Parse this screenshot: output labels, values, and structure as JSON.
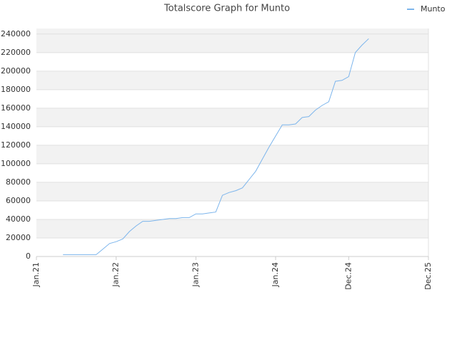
{
  "chart_data": {
    "type": "line",
    "title": "Totalscore Graph for Munto",
    "x": [
      "2021-05",
      "2021-06",
      "2021-07",
      "2021-08",
      "2021-09",
      "2021-10",
      "2021-11",
      "2021-12",
      "2022-01",
      "2022-02",
      "2022-03",
      "2022-04",
      "2022-05",
      "2022-06",
      "2022-07",
      "2022-08",
      "2022-09",
      "2022-10",
      "2022-11",
      "2022-12",
      "2023-01",
      "2023-02",
      "2023-03",
      "2023-04",
      "2023-05",
      "2023-06",
      "2023-07",
      "2023-08",
      "2023-09",
      "2023-10",
      "2023-11",
      "2023-12",
      "2024-01",
      "2024-02",
      "2024-03",
      "2024-04",
      "2024-05",
      "2024-06",
      "2024-07",
      "2024-08",
      "2024-09",
      "2024-10",
      "2024-11",
      "2024-12",
      "2025-01",
      "2025-02",
      "2025-03"
    ],
    "series": [
      {
        "name": "Munto",
        "color": "#7cb5ec",
        "values": [
          2000,
          2000,
          2000,
          2000,
          2000,
          2000,
          8000,
          14000,
          16000,
          19000,
          27000,
          33000,
          38000,
          38000,
          39000,
          40000,
          41000,
          41000,
          42000,
          42000,
          46000,
          46000,
          47000,
          48000,
          66000,
          69000,
          71000,
          74000,
          83000,
          92000,
          105000,
          118000,
          130000,
          142000,
          142000,
          143000,
          150000,
          151000,
          158000,
          163000,
          167000,
          189000,
          190000,
          194000,
          220000,
          228000,
          235000
        ]
      }
    ],
    "xlim": [
      "2021-01",
      "2025-12"
    ],
    "xticks": [
      {
        "value": "2021-01",
        "label": "Jan.21"
      },
      {
        "value": "2022-01",
        "label": "Jan.22"
      },
      {
        "value": "2023-01",
        "label": "Jan.23"
      },
      {
        "value": "2024-01",
        "label": "Jan.24"
      },
      {
        "value": "2024-12",
        "label": "Dec.24"
      },
      {
        "value": "2025-12",
        "label": "Dec.25"
      }
    ],
    "ylim": [
      0,
      246000
    ],
    "yticks": [
      0,
      20000,
      40000,
      60000,
      80000,
      100000,
      120000,
      140000,
      160000,
      180000,
      200000,
      220000,
      240000
    ],
    "grid": true,
    "legend": "top-right"
  }
}
